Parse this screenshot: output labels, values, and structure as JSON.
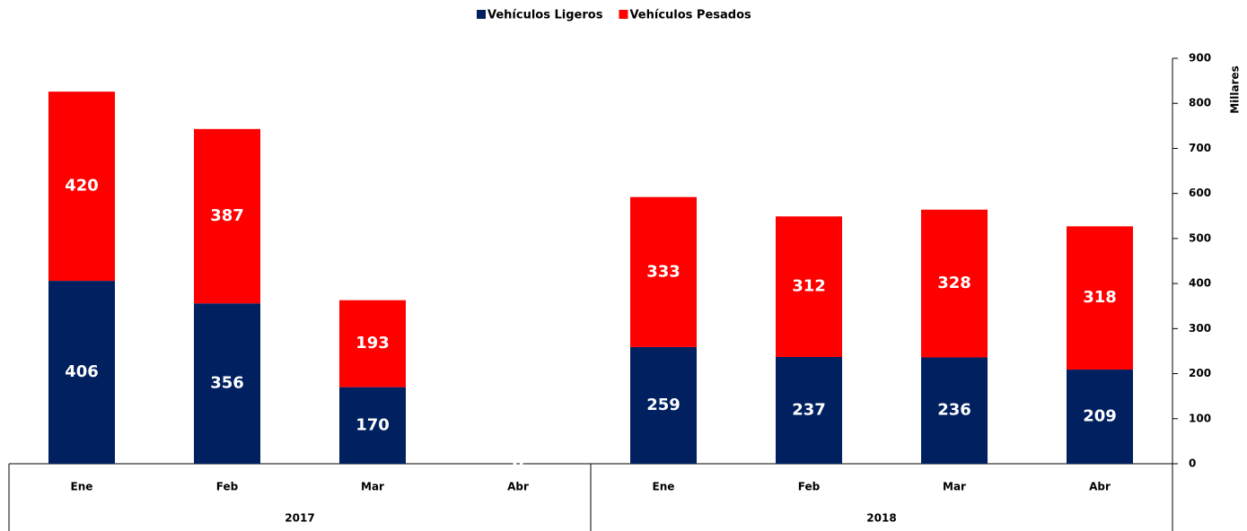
{
  "chart_data": {
    "type": "stacked_bar",
    "groups": [
      {
        "name": "2017",
        "categories": [
          "Ene",
          "Feb",
          "Mar",
          "Abr"
        ]
      },
      {
        "name": "2018",
        "categories": [
          "Ene",
          "Feb",
          "Mar",
          "Abr"
        ]
      }
    ],
    "series": [
      {
        "name": "Vehículos Ligeros",
        "color": "#002060",
        "values": [
          406,
          356,
          170,
          0,
          259,
          237,
          236,
          209
        ]
      },
      {
        "name": "Vehículos Pesados",
        "color": "#ff0000",
        "values": [
          420,
          387,
          193,
          0,
          333,
          312,
          328,
          318
        ]
      }
    ],
    "y_label": "Millares",
    "ylim": [
      0,
      900
    ],
    "yticks": [
      0,
      100,
      200,
      300,
      400,
      500,
      600,
      700,
      800,
      900
    ],
    "y_axis_side": "right",
    "legend": "top"
  }
}
